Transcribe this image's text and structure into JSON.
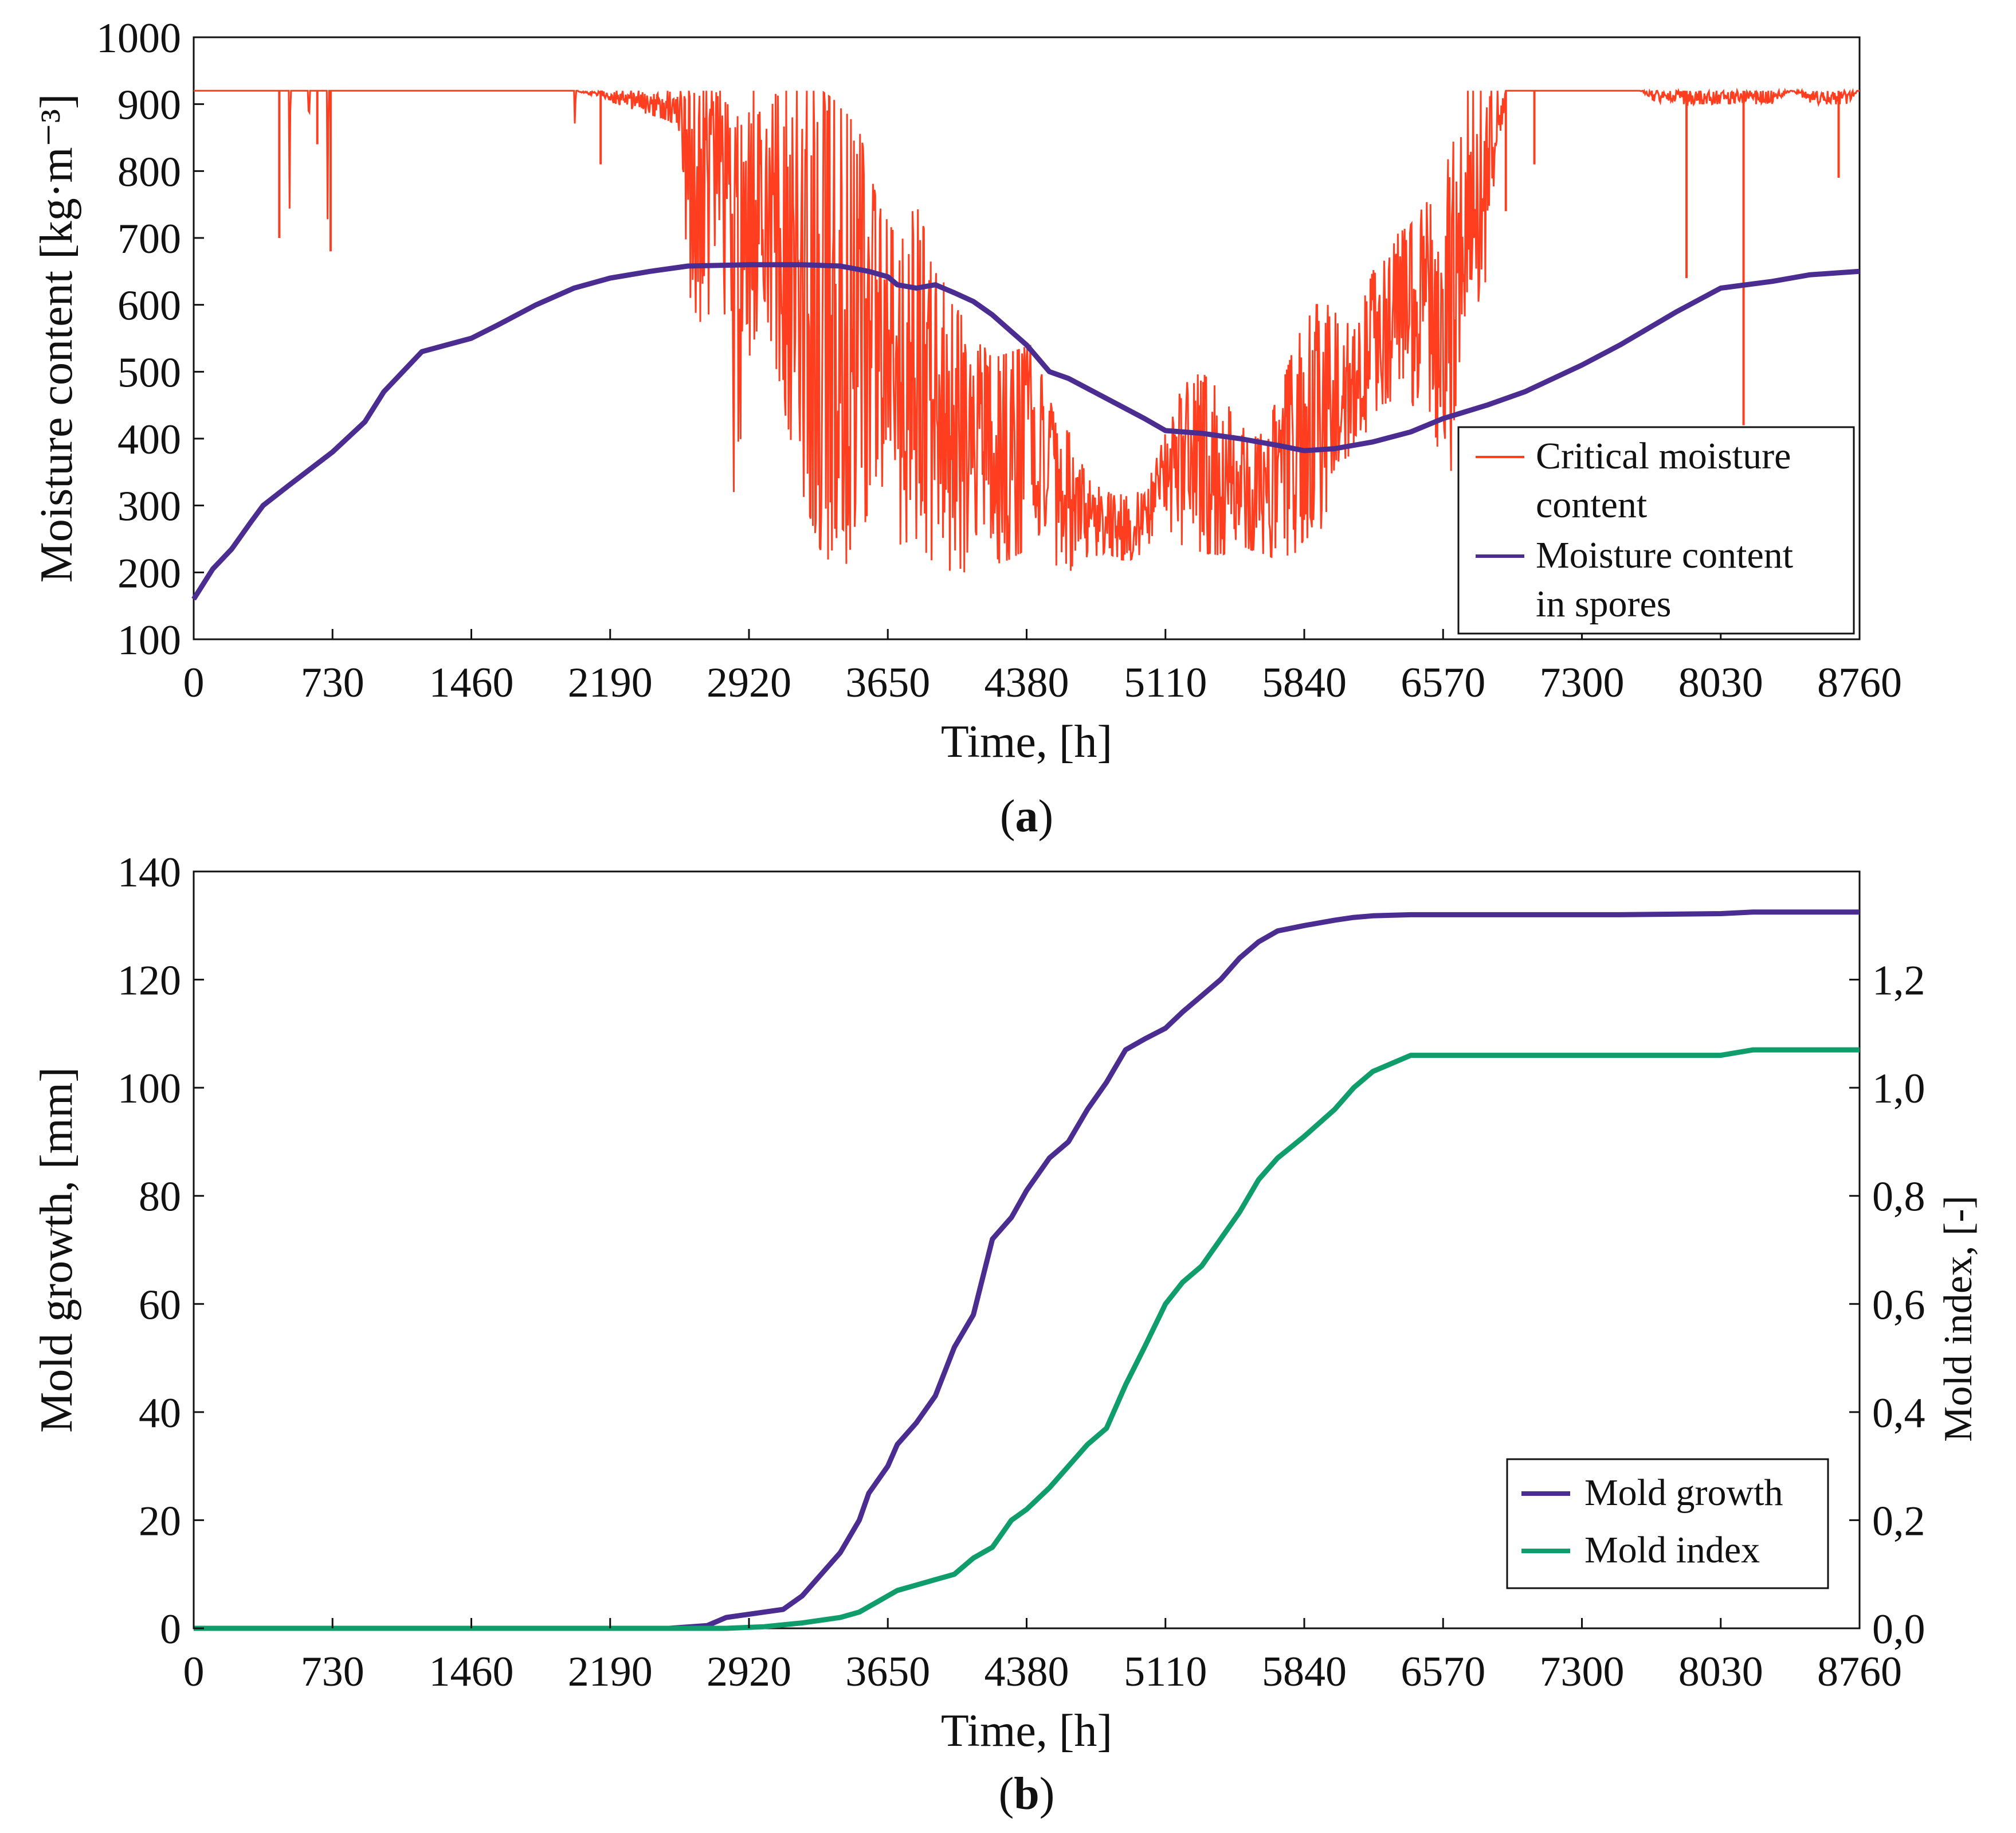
{
  "chart_data": [
    {
      "type": "line",
      "panel_label": "a",
      "xlabel": "Time, [h]",
      "ylabel": "Moisture content [kg·m⁻³]",
      "xlim": [
        0,
        8760
      ],
      "ylim": [
        100,
        1000
      ],
      "xticks": [
        "0",
        "730",
        "1460",
        "2190",
        "2920",
        "3650",
        "4380",
        "5110",
        "5840",
        "6570",
        "7300",
        "8030",
        "8760"
      ],
      "yticks": [
        "100",
        "200",
        "300",
        "400",
        "500",
        "600",
        "700",
        "800",
        "900",
        "1000"
      ],
      "legend_position": "bottom-right",
      "series": [
        {
          "name": "Critical moisture content",
          "color": "#ff3d1f",
          "style": "noisy",
          "x": [
            0,
            500,
            505,
            510,
            600,
            605,
            610,
            700,
            705,
            710,
            2000,
            2005,
            2010,
            2550,
            2600,
            2650,
            2700,
            2750,
            2800,
            2850,
            2900,
            2950,
            3000,
            3100,
            3200,
            3300,
            3400,
            3500,
            3600,
            3700,
            3800,
            3900,
            4000,
            4100,
            4200,
            4300,
            4400,
            4500,
            4600,
            4700,
            4800,
            4900,
            5000,
            5100,
            5200,
            5300,
            5400,
            5500,
            5600,
            5700,
            5800,
            5900,
            6000,
            6100,
            6200,
            6300,
            6400,
            6500,
            6600,
            6700,
            6800,
            6900,
            7000,
            7100,
            7200,
            7300,
            7400,
            7500,
            7600,
            7700,
            7800,
            7900,
            8000,
            8100,
            8200,
            8300,
            8400,
            8500,
            8600,
            8700,
            8760
          ],
          "low": [
            920,
            920,
            700,
            920,
            920,
            840,
            920,
            920,
            680,
            920,
            920,
            810,
            920,
            870,
            620,
            580,
            560,
            720,
            560,
            260,
            500,
            550,
            600,
            450,
            320,
            230,
            200,
            240,
            350,
            240,
            250,
            210,
            200,
            200,
            210,
            220,
            240,
            210,
            200,
            220,
            230,
            215,
            230,
            260,
            240,
            230,
            225,
            240,
            230,
            220,
            230,
            240,
            330,
            390,
            420,
            430,
            450,
            440,
            310,
            560,
            640,
            920,
            920,
            920,
            920,
            920,
            920,
            920,
            920,
            900,
            900,
            900,
            900,
            900,
            900,
            900,
            920,
            900,
            900,
            900,
            920
          ],
          "high": [
            920,
            920,
            920,
            920,
            920,
            920,
            920,
            920,
            920,
            920,
            920,
            920,
            920,
            920,
            920,
            920,
            920,
            920,
            920,
            920,
            920,
            920,
            920,
            920,
            920,
            920,
            900,
            860,
            750,
            700,
            750,
            660,
            600,
            560,
            520,
            530,
            540,
            480,
            420,
            340,
            320,
            320,
            320,
            400,
            480,
            500,
            470,
            420,
            400,
            460,
            550,
            600,
            600,
            560,
            650,
            700,
            720,
            760,
            820,
            920,
            920,
            920,
            920,
            920,
            920,
            920,
            920,
            920,
            920,
            920,
            920,
            920,
            920,
            920,
            920,
            920,
            920,
            920,
            920,
            920,
            920
          ]
        },
        {
          "name": "Moisture content in spores",
          "color": "#4b2c91",
          "x": [
            0,
            100,
            200,
            300,
            365,
            500,
            730,
            900,
            1000,
            1200,
            1460,
            1600,
            1800,
            2000,
            2190,
            2400,
            2600,
            2920,
            3200,
            3400,
            3550,
            3650,
            3700,
            3800,
            3900,
            4000,
            4100,
            4200,
            4380,
            4500,
            4600,
            4800,
            5000,
            5110,
            5300,
            5500,
            5700,
            5840,
            6000,
            6200,
            6400,
            6570,
            6800,
            7000,
            7300,
            7500,
            7800,
            8030,
            8300,
            8500,
            8760
          ],
          "values": [
            160,
            205,
            235,
            275,
            300,
            330,
            380,
            425,
            470,
            530,
            550,
            570,
            600,
            625,
            640,
            650,
            658,
            660,
            660,
            658,
            650,
            642,
            630,
            625,
            630,
            618,
            605,
            585,
            540,
            500,
            490,
            460,
            430,
            412,
            408,
            400,
            390,
            382,
            385,
            395,
            410,
            430,
            450,
            470,
            510,
            540,
            590,
            625,
            635,
            645,
            650
          ]
        }
      ]
    },
    {
      "type": "line",
      "panel_label": "b",
      "xlabel": "Time, [h]",
      "ylabel": "Mold growth, [mm]",
      "y2label": "Mold index, [-]",
      "xlim": [
        0,
        8760
      ],
      "ylim": [
        0,
        140
      ],
      "y2lim": [
        0,
        1.4
      ],
      "xticks": [
        "0",
        "730",
        "1460",
        "2190",
        "2920",
        "3650",
        "4380",
        "5110",
        "5840",
        "6570",
        "7300",
        "8030",
        "8760"
      ],
      "yticks": [
        "0",
        "20",
        "40",
        "60",
        "80",
        "100",
        "120",
        "140"
      ],
      "y2ticks": [
        "0,0",
        "0,2",
        "0,4",
        "0,6",
        "0,8",
        "1,0",
        "1,2"
      ],
      "legend_position": "bottom-right",
      "series": [
        {
          "name": "Mold growth",
          "color": "#4b2c91",
          "axis": "left",
          "x": [
            0,
            2500,
            2700,
            2800,
            3000,
            3100,
            3200,
            3300,
            3400,
            3500,
            3550,
            3650,
            3700,
            3800,
            3900,
            4000,
            4100,
            4200,
            4300,
            4380,
            4500,
            4600,
            4700,
            4800,
            4900,
            5000,
            5110,
            5200,
            5300,
            5400,
            5500,
            5600,
            5700,
            5840,
            6000,
            6100,
            6200,
            6400,
            6570,
            7000,
            7500,
            8030,
            8200,
            8760
          ],
          "values": [
            0,
            0,
            0.5,
            2,
            3,
            3.5,
            6,
            10,
            14,
            20,
            25,
            30,
            34,
            38,
            43,
            52,
            58,
            72,
            76,
            81,
            87,
            90,
            96,
            101,
            107,
            109,
            111,
            114,
            117,
            120,
            124,
            127,
            129,
            130,
            131,
            131.5,
            131.8,
            132,
            132,
            132,
            132,
            132.2,
            132.5,
            132.5
          ]
        },
        {
          "name": "Mold index",
          "color": "#0f9d6b",
          "axis": "right",
          "x": [
            0,
            2800,
            3000,
            3200,
            3400,
            3500,
            3600,
            3650,
            3700,
            3800,
            3900,
            4000,
            4100,
            4200,
            4300,
            4380,
            4500,
            4600,
            4700,
            4800,
            4900,
            5000,
            5110,
            5200,
            5300,
            5400,
            5500,
            5600,
            5700,
            5840,
            6000,
            6100,
            6200,
            6400,
            6570,
            7000,
            7500,
            8030,
            8200,
            8760
          ],
          "values": [
            0,
            0,
            0.003,
            0.01,
            0.02,
            0.03,
            0.05,
            0.06,
            0.07,
            0.08,
            0.09,
            0.1,
            0.13,
            0.15,
            0.2,
            0.22,
            0.26,
            0.3,
            0.34,
            0.37,
            0.45,
            0.52,
            0.6,
            0.64,
            0.67,
            0.72,
            0.77,
            0.83,
            0.87,
            0.91,
            0.96,
            1.0,
            1.03,
            1.06,
            1.06,
            1.06,
            1.06,
            1.06,
            1.07,
            1.07
          ]
        }
      ]
    }
  ]
}
